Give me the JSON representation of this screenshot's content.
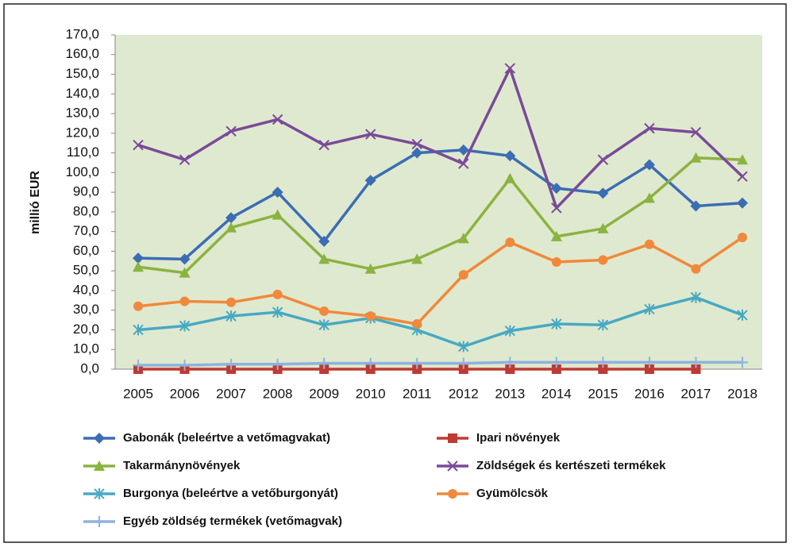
{
  "chart_data": {
    "type": "line",
    "y_label": "millió EUR",
    "categories": [
      "2005",
      "2006",
      "2007",
      "2008",
      "2009",
      "2010",
      "2011",
      "2012",
      "2013",
      "2014",
      "2015",
      "2016",
      "2017",
      "2018"
    ],
    "ylim": [
      0,
      170
    ],
    "yticks": [
      {
        "value": 0,
        "label": "0,0"
      },
      {
        "value": 10,
        "label": "10,0"
      },
      {
        "value": 20,
        "label": "20,0"
      },
      {
        "value": 30,
        "label": "30,0"
      },
      {
        "value": 40,
        "label": "40,0"
      },
      {
        "value": 50,
        "label": "50,0"
      },
      {
        "value": 60,
        "label": "60,0"
      },
      {
        "value": 70,
        "label": "70,0"
      },
      {
        "value": 80,
        "label": "80,0"
      },
      {
        "value": 90,
        "label": "90,0"
      },
      {
        "value": 100,
        "label": "100,0"
      },
      {
        "value": 110,
        "label": "110,0"
      },
      {
        "value": 120,
        "label": "120,0"
      },
      {
        "value": 130,
        "label": "130,0"
      },
      {
        "value": 140,
        "label": "140,0"
      },
      {
        "value": 150,
        "label": "150,0"
      },
      {
        "value": 160,
        "label": "160,0"
      },
      {
        "value": 170,
        "label": "170,0"
      }
    ],
    "grid": false,
    "legend": "bottom",
    "series": [
      {
        "name": "Gabonák (beleértve a vetőmagvakat)",
        "color": "#3b6db3",
        "marker": "diamond",
        "values": [
          56.5,
          56,
          77,
          90,
          65,
          96,
          110,
          111.5,
          108.5,
          92,
          89.5,
          104,
          83,
          84.5
        ]
      },
      {
        "name": "Ipari növények",
        "color": "#be3a32",
        "marker": "square",
        "values": [
          0,
          0,
          0,
          0,
          0,
          0,
          0,
          0,
          0,
          0,
          0,
          0,
          0,
          null
        ]
      },
      {
        "name": "Takarmánynövények",
        "color": "#8bb340",
        "marker": "triangle",
        "values": [
          52,
          49,
          72,
          78.5,
          56,
          51,
          56,
          66.5,
          97,
          67.5,
          71.5,
          87,
          107.5,
          106.5
        ]
      },
      {
        "name": "Zöldségek és kertészeti termékek",
        "color": "#7a4a98",
        "marker": "x",
        "values": [
          114,
          106.5,
          121,
          127,
          114,
          119.5,
          114.5,
          104.5,
          153,
          82,
          106.5,
          122.5,
          120.5,
          98
        ]
      },
      {
        "name": "Burgonya (beleértve a vetőburgonyát)",
        "color": "#47a9c3",
        "marker": "asterisk",
        "values": [
          20,
          22,
          27,
          29,
          22.5,
          26,
          20,
          11.5,
          19.5,
          23,
          22.5,
          30.5,
          36.5,
          27.5
        ]
      },
      {
        "name": "Gyümölcsök",
        "color": "#f0893b",
        "marker": "circle",
        "values": [
          32,
          34.5,
          34,
          38,
          29.5,
          27,
          23,
          48,
          64.5,
          54.5,
          55.5,
          63.5,
          51,
          67
        ]
      },
      {
        "name": "Egyéb zöldség termékek (vetőmagvak)",
        "color": "#8fb2de",
        "marker": "plus",
        "values": [
          2,
          2,
          2.5,
          2.5,
          3,
          3,
          3,
          3,
          3.5,
          3.5,
          3.5,
          3.5,
          3.5,
          3.5
        ]
      }
    ]
  }
}
